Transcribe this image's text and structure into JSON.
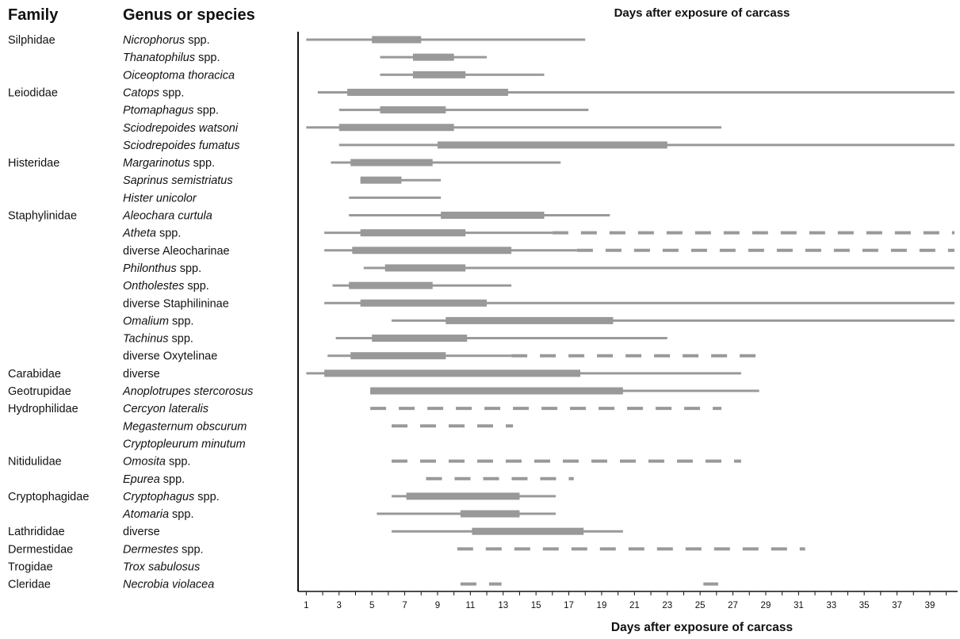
{
  "headers": {
    "family": "Family",
    "genus": "Genus or species"
  },
  "chart_data": {
    "type": "bar",
    "title": "Days after exposure of carcass",
    "xlabel": "Days after exposure of carcass",
    "ylabel": "",
    "xlim": [
      0.5,
      40.5
    ],
    "x_ticks": [
      1,
      3,
      5,
      7,
      9,
      11,
      13,
      15,
      17,
      19,
      21,
      23,
      25,
      27,
      29,
      31,
      33,
      35,
      37,
      39
    ],
    "grid": false,
    "bar_color": "#999999",
    "rows": [
      {
        "family": "Silphidae",
        "genus": {
          "italic": "Nicrophorus",
          "normal": " spp."
        },
        "range": [
          1,
          18
        ],
        "peak": [
          5,
          8
        ],
        "dashed": null
      },
      {
        "family": "",
        "genus": {
          "italic": "Thanatophilus",
          "normal": " spp."
        },
        "range": [
          5.5,
          12
        ],
        "peak": [
          7.5,
          10
        ],
        "dashed": null
      },
      {
        "family": "",
        "genus": {
          "italic": "Oiceoptoma thoracica",
          "normal": ""
        },
        "range": [
          5.5,
          15.5
        ],
        "peak": [
          7.5,
          10.7
        ],
        "dashed": null
      },
      {
        "family": "Leiodidae",
        "genus": {
          "italic": "Catops",
          "normal": " spp."
        },
        "range": [
          1.7,
          40.5
        ],
        "peak": [
          3.5,
          13.3
        ],
        "dashed": null
      },
      {
        "family": "",
        "genus": {
          "italic": "Ptomaphagus",
          "normal": " spp."
        },
        "range": [
          3,
          18.2
        ],
        "peak": [
          5.5,
          9.5
        ],
        "dashed": null
      },
      {
        "family": "",
        "genus": {
          "italic": "Sciodrepoides watsoni",
          "normal": ""
        },
        "range": [
          1,
          26.3
        ],
        "peak": [
          3,
          10
        ],
        "dashed": null
      },
      {
        "family": "",
        "genus": {
          "italic": "Sciodrepoides fumatus",
          "normal": ""
        },
        "range": [
          3,
          40.5
        ],
        "peak": [
          9,
          23
        ],
        "dashed": null
      },
      {
        "family": "Histeridae",
        "genus": {
          "italic": "Margarinotus",
          "normal": " spp."
        },
        "range": [
          2.5,
          16.5
        ],
        "peak": [
          3.7,
          8.7
        ],
        "dashed": null
      },
      {
        "family": "",
        "genus": {
          "italic": "Saprinus semistriatus",
          "normal": ""
        },
        "range": [
          4.3,
          9.2
        ],
        "peak": [
          4.3,
          6.8
        ],
        "dashed": null
      },
      {
        "family": "",
        "genus": {
          "italic": "Hister unicolor",
          "normal": ""
        },
        "range": [
          3.6,
          9.2
        ],
        "peak": null,
        "dashed": null
      },
      {
        "family": "Staphylinidae",
        "genus": {
          "italic": "Aleochara curtula",
          "normal": ""
        },
        "range": [
          3.6,
          19.5
        ],
        "peak": [
          9.2,
          15.5
        ],
        "dashed": null
      },
      {
        "family": "",
        "genus": {
          "italic": "Atheta",
          "normal": " spp."
        },
        "range": [
          2.1,
          16
        ],
        "peak": [
          4.3,
          10.7
        ],
        "dashed": [
          16,
          40.5
        ]
      },
      {
        "family": "",
        "genus": {
          "italic": "",
          "normal": "diverse Aleocharinae"
        },
        "range": [
          2.1,
          17.5
        ],
        "peak": [
          3.8,
          13.5
        ],
        "dashed": [
          17.5,
          40.5
        ]
      },
      {
        "family": "",
        "genus": {
          "italic": "Philonthus",
          "normal": " spp."
        },
        "range": [
          4.5,
          40.5
        ],
        "peak": [
          5.8,
          10.7
        ],
        "dashed": null
      },
      {
        "family": "",
        "genus": {
          "italic": "Ontholestes",
          "normal": " spp."
        },
        "range": [
          2.6,
          13.5
        ],
        "peak": [
          3.6,
          8.7
        ],
        "dashed": null
      },
      {
        "family": "",
        "genus": {
          "italic": "",
          "normal": "diverse Staphilininae"
        },
        "range": [
          2.1,
          40.5
        ],
        "peak": [
          4.3,
          12
        ],
        "dashed": null
      },
      {
        "family": "",
        "genus": {
          "italic": "Omalium",
          "normal": " spp."
        },
        "range": [
          6.2,
          40.5
        ],
        "peak": [
          9.5,
          19.7
        ],
        "dashed": null
      },
      {
        "family": "",
        "genus": {
          "italic": "Tachinus",
          "normal": " spp."
        },
        "range": [
          2.8,
          23
        ],
        "peak": [
          5,
          10.8
        ],
        "dashed": null
      },
      {
        "family": "",
        "genus": {
          "italic": "",
          "normal": "diverse Oxytelinae"
        },
        "range": [
          2.3,
          13.5
        ],
        "peak": [
          3.7,
          9.5
        ],
        "dashed": [
          13.5,
          28.5
        ]
      },
      {
        "family": "Carabidae",
        "genus": {
          "italic": "",
          "normal": "diverse"
        },
        "range": [
          1,
          27.5
        ],
        "peak": [
          2.1,
          17.7
        ],
        "dashed": null
      },
      {
        "family": "Geotrupidae",
        "genus": {
          "italic": "Anoplotrupes stercorosus",
          "normal": ""
        },
        "range": [
          4.9,
          28.6
        ],
        "peak": [
          4.9,
          20.3
        ],
        "dashed": null
      },
      {
        "family": "Hydrophilidae",
        "genus": {
          "italic": "Cercyon lateralis",
          "normal": ""
        },
        "range": null,
        "peak": null,
        "dashed": [
          4.9,
          26.3
        ]
      },
      {
        "family": "",
        "genus": {
          "italic": "Megasternum obscurum",
          "normal": ""
        },
        "range": null,
        "peak": null,
        "dashed": [
          6.2,
          13.6
        ]
      },
      {
        "family": "",
        "genus": {
          "italic": "Cryptopleurum minutum",
          "normal": ""
        },
        "range": null,
        "peak": null,
        "dashed": null
      },
      {
        "family": "Nitidulidae",
        "genus": {
          "italic": "Omosita",
          "normal": " spp."
        },
        "range": null,
        "peak": null,
        "dashed": [
          6.2,
          27.5
        ]
      },
      {
        "family": "",
        "genus": {
          "italic": "Epurea",
          "normal": " spp."
        },
        "range": null,
        "peak": null,
        "dashed": [
          8.3,
          17.3
        ]
      },
      {
        "family": "Cryptophagidae",
        "genus": {
          "italic": "Cryptophagus",
          "normal": " spp."
        },
        "range": [
          6.2,
          16.2
        ],
        "peak": [
          7.1,
          14
        ],
        "dashed": null
      },
      {
        "family": "",
        "genus": {
          "italic": "Atomaria",
          "normal": " spp."
        },
        "range": [
          5.3,
          16.2
        ],
        "peak": [
          10.4,
          14
        ],
        "dashed": null
      },
      {
        "family": "Lathrididae",
        "genus": {
          "italic": "",
          "normal": "diverse"
        },
        "range": [
          6.2,
          20.3
        ],
        "peak": [
          11.1,
          17.9
        ],
        "dashed": null
      },
      {
        "family": "Dermestidae",
        "genus": {
          "italic": "Dermestes",
          "normal": " spp."
        },
        "range": null,
        "peak": null,
        "dashed": [
          10.2,
          31.4
        ]
      },
      {
        "family": "Trogidae",
        "genus": {
          "italic": "Trox sabulosus",
          "normal": ""
        },
        "range": null,
        "peak": null,
        "dashed": null
      },
      {
        "family": "Cleridae",
        "genus": {
          "italic": "Necrobia violacea",
          "normal": ""
        },
        "range": null,
        "peak": null,
        "dashed": [
          10.4,
          12.9
        ],
        "extra_dashed": [
          [
            25.2,
            26.1
          ]
        ]
      }
    ]
  }
}
